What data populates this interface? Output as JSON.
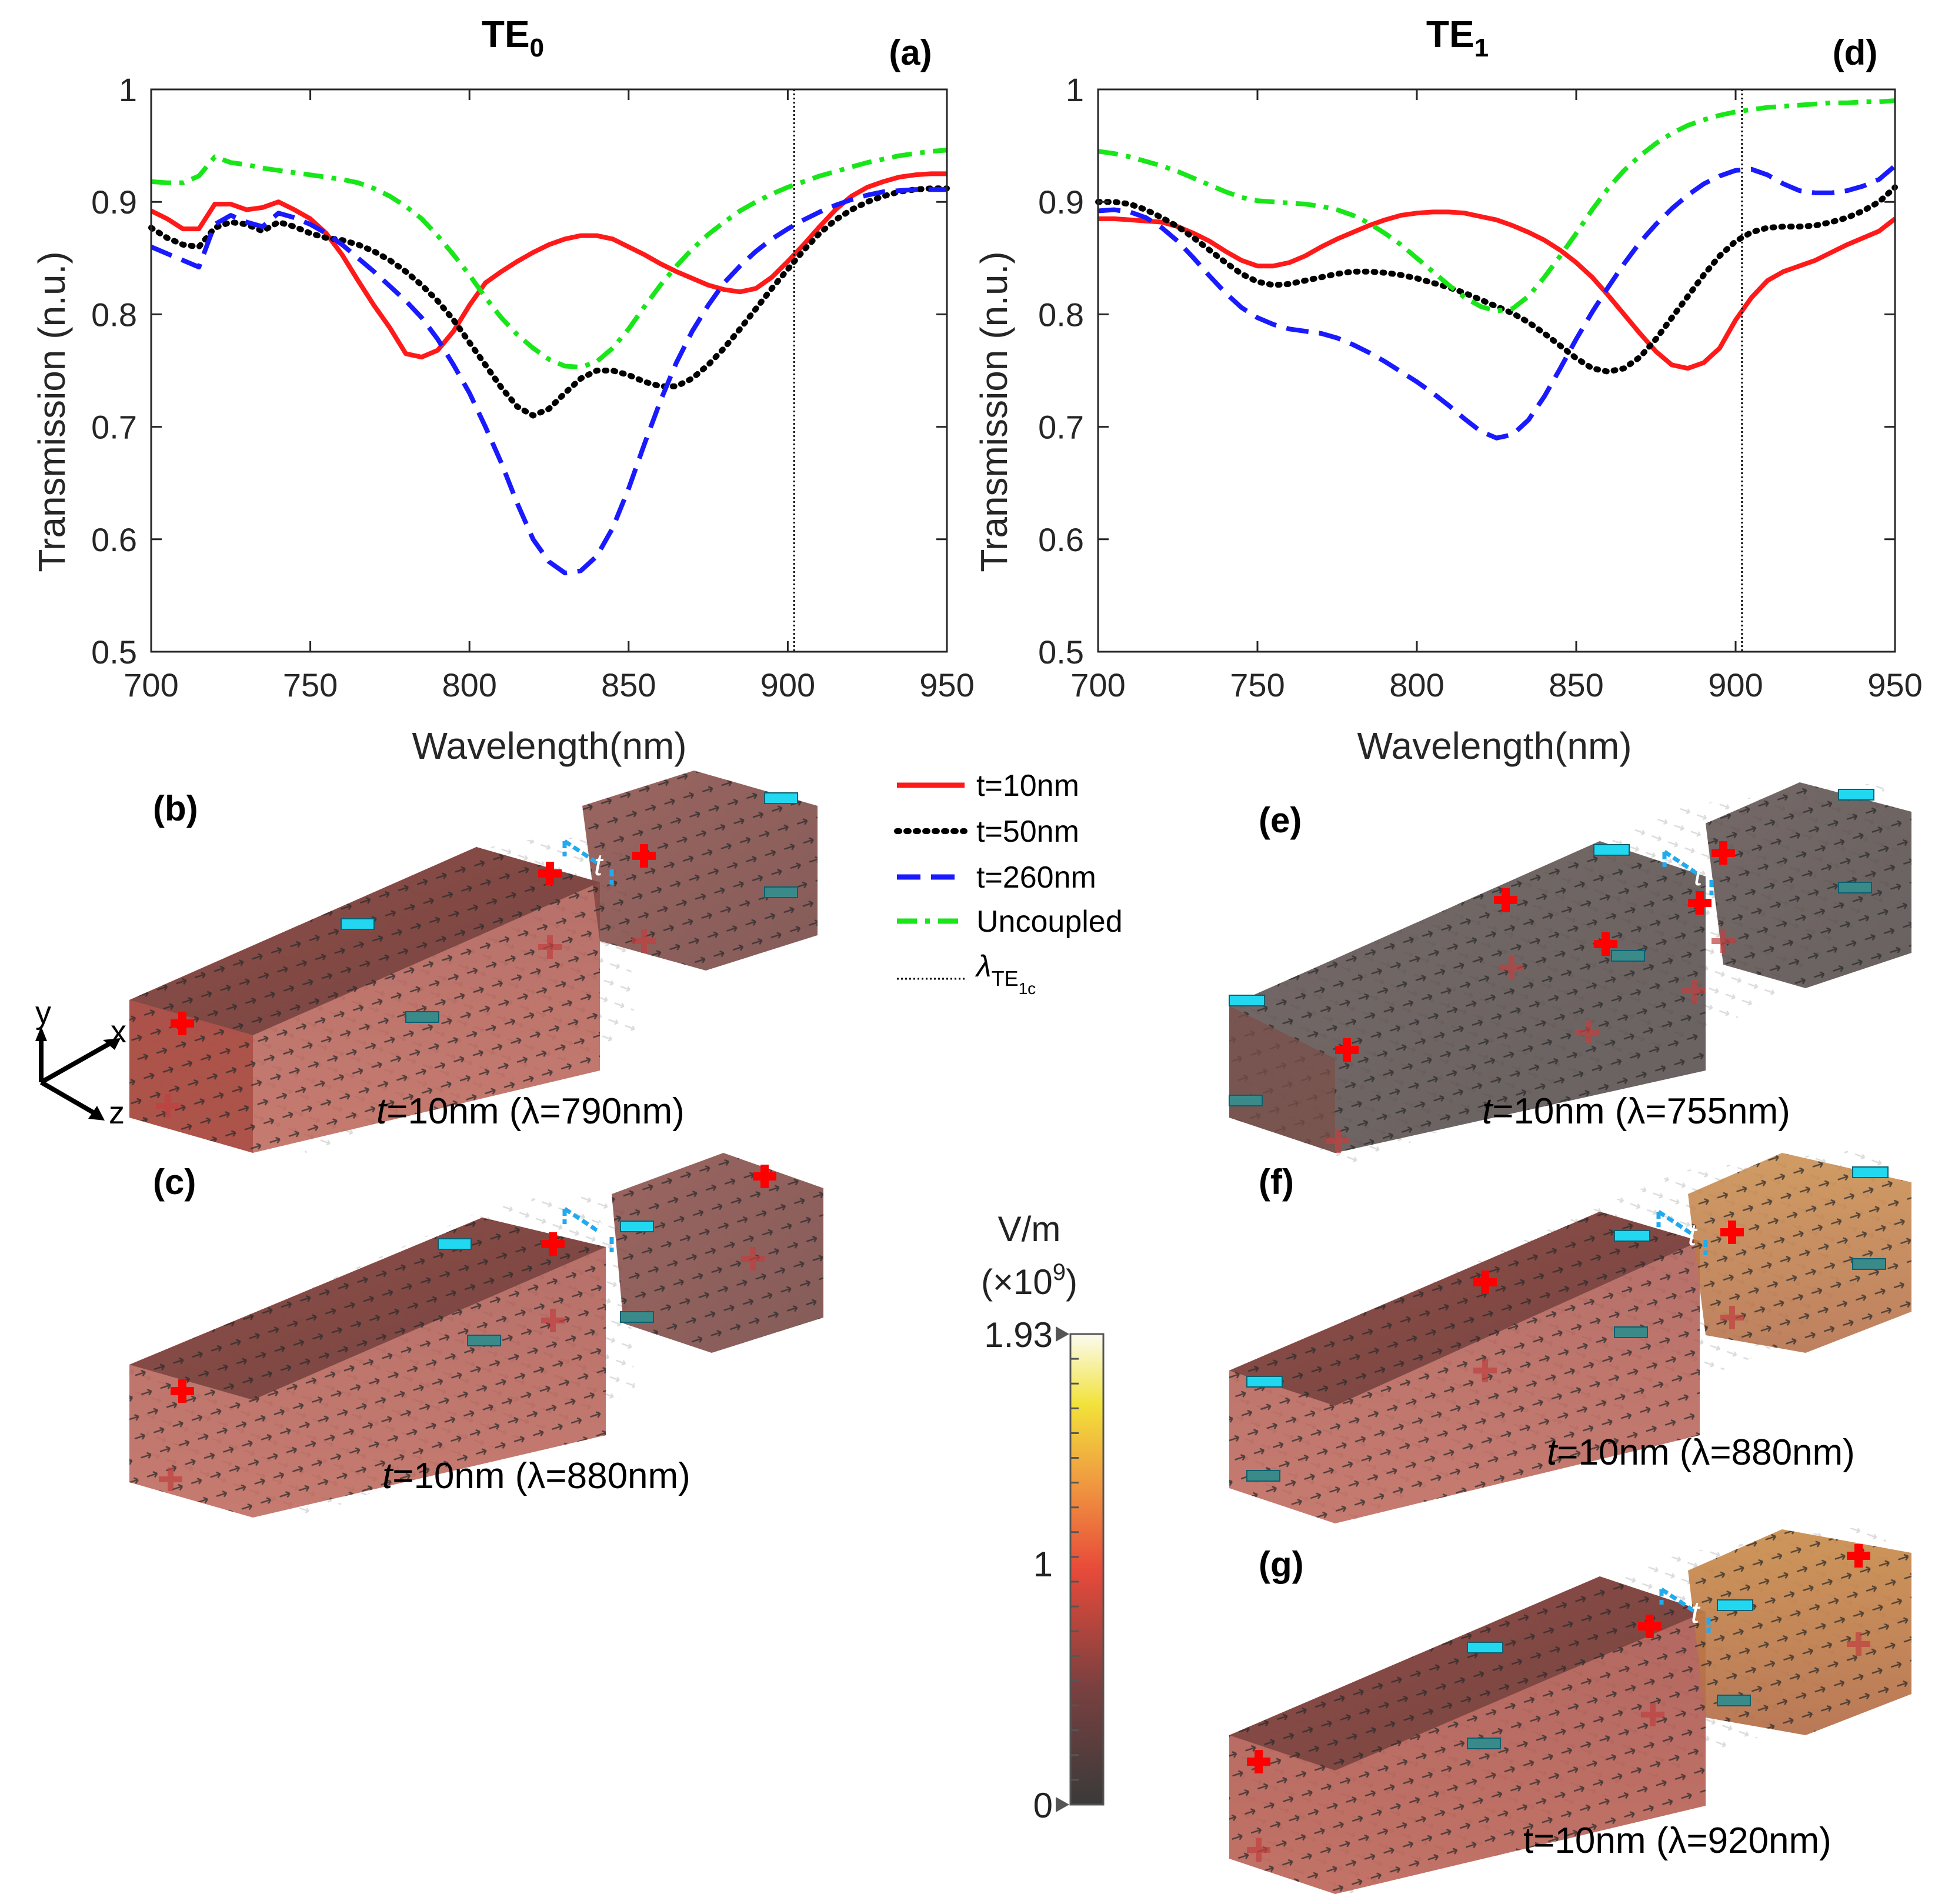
{
  "chart_data": [
    {
      "id": "a",
      "type": "line",
      "title": "TE",
      "title_sub": "0",
      "panel_label": "(a)",
      "xlabel": "Wavelength(nm)",
      "ylabel": "Transmission (n.u.)",
      "xlim": [
        700,
        950
      ],
      "ylim": [
        0.5,
        1
      ],
      "xticks": [
        700,
        750,
        800,
        850,
        900,
        950
      ],
      "yticks": [
        0.5,
        0.6,
        0.7,
        0.8,
        0.9,
        1
      ],
      "ytick_labels": [
        "0.5",
        "0.6",
        "0.7",
        "0.8",
        "0.9",
        "1"
      ],
      "vline": 902,
      "series": [
        {
          "name": "t=10nm",
          "color": "#ff1a1a",
          "dash": "solid",
          "x": [
            700,
            705,
            710,
            715,
            720,
            725,
            730,
            735,
            740,
            745,
            750,
            755,
            760,
            765,
            770,
            775,
            780,
            785,
            790,
            795,
            800,
            805,
            810,
            815,
            820,
            825,
            830,
            835,
            840,
            845,
            850,
            855,
            860,
            865,
            870,
            875,
            880,
            885,
            890,
            895,
            900,
            905,
            910,
            915,
            920,
            925,
            930,
            935,
            940,
            945,
            950
          ],
          "y": [
            0.892,
            0.885,
            0.876,
            0.876,
            0.898,
            0.898,
            0.893,
            0.895,
            0.9,
            0.893,
            0.885,
            0.872,
            0.853,
            0.83,
            0.808,
            0.788,
            0.765,
            0.762,
            0.768,
            0.785,
            0.808,
            0.828,
            0.838,
            0.847,
            0.855,
            0.862,
            0.867,
            0.87,
            0.87,
            0.867,
            0.86,
            0.853,
            0.845,
            0.838,
            0.832,
            0.826,
            0.822,
            0.82,
            0.823,
            0.833,
            0.847,
            0.862,
            0.878,
            0.893,
            0.905,
            0.913,
            0.918,
            0.922,
            0.924,
            0.925,
            0.925
          ]
        },
        {
          "name": "t=50nm",
          "color": "#000000",
          "dash": "dot",
          "x": [
            700,
            705,
            710,
            715,
            720,
            725,
            730,
            735,
            740,
            745,
            750,
            755,
            760,
            765,
            770,
            775,
            780,
            785,
            790,
            795,
            800,
            805,
            810,
            815,
            820,
            825,
            830,
            835,
            840,
            845,
            850,
            855,
            860,
            865,
            870,
            875,
            880,
            885,
            890,
            895,
            900,
            905,
            910,
            915,
            920,
            925,
            930,
            935,
            940,
            945,
            950
          ],
          "y": [
            0.877,
            0.868,
            0.862,
            0.86,
            0.877,
            0.882,
            0.88,
            0.874,
            0.882,
            0.878,
            0.872,
            0.868,
            0.866,
            0.862,
            0.856,
            0.848,
            0.838,
            0.826,
            0.812,
            0.795,
            0.775,
            0.755,
            0.735,
            0.718,
            0.71,
            0.716,
            0.73,
            0.743,
            0.75,
            0.75,
            0.746,
            0.74,
            0.736,
            0.736,
            0.743,
            0.755,
            0.77,
            0.787,
            0.805,
            0.823,
            0.84,
            0.857,
            0.872,
            0.884,
            0.893,
            0.9,
            0.905,
            0.909,
            0.911,
            0.912,
            0.912
          ]
        },
        {
          "name": "t=260nm",
          "color": "#1a1aff",
          "dash": "dash",
          "x": [
            700,
            705,
            710,
            715,
            720,
            725,
            730,
            735,
            740,
            745,
            750,
            755,
            760,
            765,
            770,
            775,
            780,
            785,
            790,
            795,
            800,
            805,
            810,
            815,
            820,
            825,
            830,
            835,
            840,
            845,
            850,
            855,
            860,
            865,
            870,
            875,
            880,
            885,
            890,
            895,
            900,
            905,
            910,
            915,
            920,
            925,
            930,
            935,
            940,
            945,
            950
          ],
          "y": [
            0.86,
            0.854,
            0.848,
            0.842,
            0.88,
            0.888,
            0.882,
            0.878,
            0.89,
            0.886,
            0.88,
            0.872,
            0.862,
            0.85,
            0.838,
            0.825,
            0.812,
            0.797,
            0.778,
            0.755,
            0.73,
            0.7,
            0.668,
            0.632,
            0.6,
            0.58,
            0.57,
            0.572,
            0.585,
            0.61,
            0.645,
            0.685,
            0.723,
            0.757,
            0.785,
            0.808,
            0.828,
            0.843,
            0.856,
            0.867,
            0.876,
            0.884,
            0.891,
            0.897,
            0.902,
            0.906,
            0.909,
            0.91,
            0.911,
            0.911,
            0.911
          ]
        },
        {
          "name": "Uncoupled",
          "color": "#19e619",
          "dash": "dashdot",
          "x": [
            700,
            705,
            710,
            715,
            720,
            725,
            730,
            735,
            740,
            745,
            750,
            755,
            760,
            765,
            770,
            775,
            780,
            785,
            790,
            795,
            800,
            805,
            810,
            815,
            820,
            825,
            830,
            835,
            840,
            845,
            850,
            855,
            860,
            865,
            870,
            875,
            880,
            885,
            890,
            895,
            900,
            905,
            910,
            915,
            920,
            925,
            930,
            935,
            940,
            945,
            950
          ],
          "y": [
            0.918,
            0.917,
            0.917,
            0.923,
            0.94,
            0.935,
            0.933,
            0.93,
            0.928,
            0.926,
            0.924,
            0.922,
            0.92,
            0.917,
            0.912,
            0.905,
            0.896,
            0.885,
            0.87,
            0.853,
            0.835,
            0.815,
            0.797,
            0.782,
            0.77,
            0.76,
            0.754,
            0.753,
            0.758,
            0.77,
            0.787,
            0.807,
            0.826,
            0.843,
            0.858,
            0.871,
            0.882,
            0.892,
            0.9,
            0.907,
            0.913,
            0.918,
            0.923,
            0.927,
            0.931,
            0.935,
            0.938,
            0.941,
            0.943,
            0.945,
            0.946
          ]
        }
      ]
    },
    {
      "id": "d",
      "type": "line",
      "title": "TE",
      "title_sub": "1",
      "panel_label": "(d)",
      "xlabel": "Wavelength(nm)",
      "ylabel": "Transmission (n.u.)",
      "xlim": [
        700,
        950
      ],
      "ylim": [
        0.5,
        1
      ],
      "xticks": [
        700,
        750,
        800,
        850,
        900,
        950
      ],
      "yticks": [
        0.5,
        0.6,
        0.7,
        0.8,
        0.9,
        1
      ],
      "ytick_labels": [
        "0.5",
        "0.6",
        "0.7",
        "0.8",
        "0.9",
        "1"
      ],
      "vline": 902,
      "series": [
        {
          "name": "t=10nm",
          "color": "#ff1a1a",
          "dash": "solid",
          "x": [
            700,
            705,
            710,
            715,
            720,
            725,
            730,
            735,
            740,
            745,
            750,
            755,
            760,
            765,
            770,
            775,
            780,
            785,
            790,
            795,
            800,
            805,
            810,
            815,
            820,
            825,
            830,
            835,
            840,
            845,
            850,
            855,
            860,
            865,
            870,
            875,
            880,
            885,
            890,
            895,
            900,
            905,
            910,
            915,
            920,
            925,
            930,
            935,
            940,
            945,
            950
          ],
          "y": [
            0.885,
            0.885,
            0.884,
            0.883,
            0.882,
            0.878,
            0.872,
            0.865,
            0.856,
            0.848,
            0.843,
            0.843,
            0.846,
            0.852,
            0.86,
            0.867,
            0.873,
            0.879,
            0.884,
            0.888,
            0.89,
            0.891,
            0.891,
            0.89,
            0.887,
            0.884,
            0.879,
            0.873,
            0.866,
            0.857,
            0.846,
            0.833,
            0.817,
            0.8,
            0.783,
            0.767,
            0.755,
            0.752,
            0.757,
            0.77,
            0.795,
            0.815,
            0.83,
            0.838,
            0.843,
            0.848,
            0.855,
            0.862,
            0.868,
            0.874,
            0.885
          ]
        },
        {
          "name": "t=50nm",
          "color": "#000000",
          "dash": "dot",
          "x": [
            700,
            705,
            710,
            715,
            720,
            725,
            730,
            735,
            740,
            745,
            750,
            755,
            760,
            765,
            770,
            775,
            780,
            785,
            790,
            795,
            800,
            805,
            810,
            815,
            820,
            825,
            830,
            835,
            840,
            845,
            850,
            855,
            860,
            865,
            870,
            875,
            880,
            885,
            890,
            895,
            900,
            905,
            910,
            915,
            920,
            925,
            930,
            935,
            940,
            945,
            950
          ],
          "y": [
            0.9,
            0.9,
            0.898,
            0.893,
            0.886,
            0.878,
            0.868,
            0.857,
            0.846,
            0.836,
            0.829,
            0.826,
            0.827,
            0.83,
            0.833,
            0.836,
            0.838,
            0.838,
            0.837,
            0.835,
            0.832,
            0.828,
            0.824,
            0.819,
            0.813,
            0.807,
            0.801,
            0.793,
            0.783,
            0.772,
            0.761,
            0.752,
            0.749,
            0.752,
            0.762,
            0.778,
            0.797,
            0.816,
            0.835,
            0.852,
            0.865,
            0.873,
            0.877,
            0.878,
            0.878,
            0.879,
            0.882,
            0.886,
            0.892,
            0.9,
            0.913
          ]
        },
        {
          "name": "t=260nm",
          "color": "#1a1aff",
          "dash": "dash",
          "x": [
            700,
            705,
            710,
            715,
            720,
            725,
            730,
            735,
            740,
            745,
            750,
            755,
            760,
            765,
            770,
            775,
            780,
            785,
            790,
            795,
            800,
            805,
            810,
            815,
            820,
            825,
            830,
            835,
            840,
            845,
            850,
            855,
            860,
            865,
            870,
            875,
            880,
            885,
            890,
            895,
            900,
            905,
            910,
            915,
            920,
            925,
            930,
            935,
            940,
            945,
            950
          ],
          "y": [
            0.892,
            0.893,
            0.891,
            0.886,
            0.877,
            0.865,
            0.85,
            0.834,
            0.819,
            0.806,
            0.797,
            0.791,
            0.787,
            0.785,
            0.783,
            0.779,
            0.773,
            0.766,
            0.758,
            0.749,
            0.74,
            0.73,
            0.719,
            0.707,
            0.696,
            0.69,
            0.693,
            0.706,
            0.727,
            0.752,
            0.778,
            0.802,
            0.824,
            0.845,
            0.864,
            0.88,
            0.894,
            0.906,
            0.916,
            0.923,
            0.928,
            0.929,
            0.924,
            0.916,
            0.91,
            0.908,
            0.908,
            0.91,
            0.914,
            0.92,
            0.932
          ]
        },
        {
          "name": "Uncoupled",
          "color": "#19e619",
          "dash": "dashdot",
          "x": [
            700,
            705,
            710,
            715,
            720,
            725,
            730,
            735,
            740,
            745,
            750,
            755,
            760,
            765,
            770,
            775,
            780,
            785,
            790,
            795,
            800,
            805,
            810,
            815,
            820,
            825,
            830,
            835,
            840,
            845,
            850,
            855,
            860,
            865,
            870,
            875,
            880,
            885,
            890,
            895,
            900,
            905,
            910,
            915,
            920,
            925,
            930,
            935,
            940,
            945,
            950
          ],
          "y": [
            0.945,
            0.943,
            0.94,
            0.936,
            0.932,
            0.927,
            0.921,
            0.915,
            0.909,
            0.904,
            0.901,
            0.9,
            0.899,
            0.898,
            0.896,
            0.893,
            0.888,
            0.881,
            0.872,
            0.862,
            0.85,
            0.838,
            0.826,
            0.815,
            0.807,
            0.803,
            0.805,
            0.816,
            0.833,
            0.852,
            0.872,
            0.893,
            0.912,
            0.928,
            0.941,
            0.952,
            0.961,
            0.968,
            0.973,
            0.977,
            0.98,
            0.982,
            0.984,
            0.985,
            0.986,
            0.987,
            0.988,
            0.988,
            0.989,
            0.989,
            0.99
          ]
        }
      ]
    }
  ],
  "legend": {
    "items": [
      {
        "label": "t=10nm",
        "color": "#ff1a1a",
        "dash": "solid"
      },
      {
        "label": "t=50nm",
        "color": "#000000",
        "dash": "dot"
      },
      {
        "label": "t=260nm",
        "color": "#1a1aff",
        "dash": "dash"
      },
      {
        "label": "Uncoupled",
        "color": "#19e619",
        "dash": "dashdot"
      }
    ],
    "lambda_symbol": "λ",
    "lambda_sub": "TE",
    "lambda_subsub": "1c"
  },
  "field_panels": {
    "b": {
      "label": "(b)",
      "t_italic": "t",
      "caption": "=10nm (λ=790nm)"
    },
    "c": {
      "label": "(c)",
      "t_italic": "t",
      "caption": "=10nm (λ=880nm)"
    },
    "e": {
      "label": "(e)",
      "t_italic": "t",
      "caption": "=10nm (λ=755nm)"
    },
    "f": {
      "label": "(f)",
      "t_italic": "t",
      "caption": "=10nm (λ=880nm)"
    },
    "g": {
      "label": "(g)",
      "caption_full": "t=10nm (λ=920nm)"
    },
    "gap_label": "t",
    "axes_labels": {
      "y": "y",
      "x": "x",
      "z": "z"
    }
  },
  "colorbar": {
    "unit": "V/m",
    "scale_prefix": "(×10",
    "scale_exp": "9",
    "scale_suffix": ")",
    "max_label": "1.93",
    "mid_label": "1",
    "min_label": "0",
    "max_value": 1.93,
    "mid_value": 1,
    "min_value": 0
  }
}
